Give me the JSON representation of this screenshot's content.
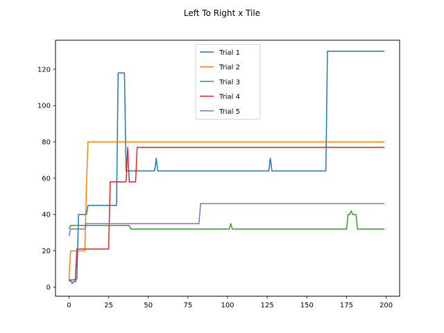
{
  "chart_data": {
    "type": "line",
    "title": "Left To Right x Tile",
    "xlabel": "",
    "ylabel": "",
    "xlim": [
      -8.5,
      208.5
    ],
    "ylim": [
      -5,
      136
    ],
    "xticks": [
      0,
      25,
      50,
      75,
      100,
      125,
      150,
      175,
      200
    ],
    "yticks": [
      0,
      20,
      40,
      60,
      80,
      100,
      120
    ],
    "grid": false,
    "legend_position": "top-center",
    "series": [
      {
        "name": "Trial 1",
        "color": "#1f77b4",
        "points": [
          [
            0,
            3
          ],
          [
            1,
            4
          ],
          [
            2,
            2
          ],
          [
            3,
            3
          ],
          [
            4,
            3
          ],
          [
            5,
            5
          ],
          [
            6,
            40
          ],
          [
            11,
            40
          ],
          [
            12,
            45
          ],
          [
            30,
            45
          ],
          [
            31,
            118
          ],
          [
            35,
            118
          ],
          [
            36,
            64
          ],
          [
            54,
            64
          ],
          [
            55,
            71
          ],
          [
            56,
            64
          ],
          [
            126,
            64
          ],
          [
            127,
            71
          ],
          [
            128,
            64
          ],
          [
            162,
            64
          ],
          [
            163,
            130
          ],
          [
            199,
            130
          ]
        ]
      },
      {
        "name": "Trial 2",
        "color": "#ff7f0e",
        "points": [
          [
            0,
            4
          ],
          [
            1,
            20
          ],
          [
            10,
            20
          ],
          [
            11,
            56
          ],
          [
            12,
            80
          ],
          [
            199,
            80
          ]
        ]
      },
      {
        "name": "Trial 3",
        "color": "#2ca02c",
        "points": [
          [
            0,
            32
          ],
          [
            1,
            34
          ],
          [
            38,
            34
          ],
          [
            39,
            32
          ],
          [
            101,
            32
          ],
          [
            102,
            35
          ],
          [
            103,
            32
          ],
          [
            175,
            32
          ],
          [
            176,
            40
          ],
          [
            177,
            40
          ],
          [
            178,
            42
          ],
          [
            179,
            40
          ],
          [
            181,
            40
          ],
          [
            182,
            32
          ],
          [
            199,
            32
          ]
        ]
      },
      {
        "name": "Trial 4",
        "color": "#d62728",
        "points": [
          [
            0,
            4
          ],
          [
            4,
            4
          ],
          [
            5,
            21
          ],
          [
            25,
            21
          ],
          [
            26,
            58
          ],
          [
            36,
            58
          ],
          [
            37,
            77
          ],
          [
            38,
            58
          ],
          [
            42,
            58
          ],
          [
            43,
            77
          ],
          [
            199,
            77
          ]
        ]
      },
      {
        "name": "Trial 5",
        "color": "#9467bd",
        "points": [
          [
            0,
            28
          ],
          [
            1,
            32
          ],
          [
            10,
            32
          ],
          [
            11,
            35
          ],
          [
            82,
            35
          ],
          [
            83,
            46
          ],
          [
            199,
            46
          ]
        ]
      }
    ]
  }
}
